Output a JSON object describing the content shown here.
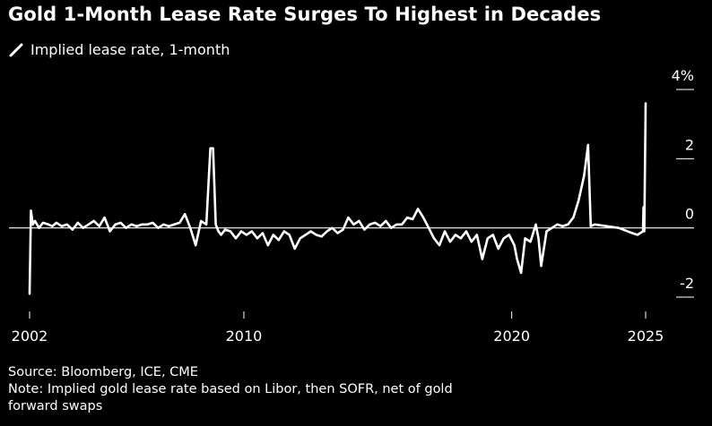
{
  "header": {
    "title": "Gold 1-Month Lease Rate Surges To Highest in Decades"
  },
  "colors": {
    "background": "#000000",
    "line": "#ffffff",
    "text": "#ffffff"
  },
  "chart_data": {
    "type": "line",
    "title": "Gold 1-Month Lease Rate Surges To Highest in Decades",
    "xlabel": "",
    "ylabel": "",
    "ylim": [
      -2,
      4
    ],
    "xlim": [
      2002,
      2027
    ],
    "y_ticks": [
      -2,
      0,
      2,
      4
    ],
    "y_tick_labels": [
      "-2",
      "0",
      "2",
      "4%"
    ],
    "x_ticks": [
      2002,
      2010,
      2020,
      2025
    ],
    "x_tick_labels": [
      "2002",
      "2010",
      "2020",
      "2025"
    ],
    "legend": "top-left",
    "series": [
      {
        "name": "Implied lease rate, 1-month",
        "x": [
          2002.0,
          2002.05,
          2002.12,
          2002.2,
          2002.35,
          2002.5,
          2002.7,
          2002.85,
          2003.0,
          2003.2,
          2003.4,
          2003.6,
          2003.8,
          2004.0,
          2004.2,
          2004.4,
          2004.6,
          2004.8,
          2005.0,
          2005.2,
          2005.4,
          2005.6,
          2005.8,
          2006.0,
          2006.2,
          2006.4,
          2006.6,
          2006.8,
          2007.0,
          2007.2,
          2007.4,
          2007.6,
          2007.8,
          2008.0,
          2008.2,
          2008.4,
          2008.6,
          2008.75,
          2008.85,
          2008.95,
          2009.05,
          2009.15,
          2009.3,
          2009.5,
          2009.7,
          2009.9,
          2010.1,
          2010.3,
          2010.5,
          2010.7,
          2010.9,
          2011.1,
          2011.3,
          2011.5,
          2011.7,
          2011.9,
          2012.1,
          2012.3,
          2012.5,
          2012.7,
          2012.9,
          2013.1,
          2013.3,
          2013.5,
          2013.7,
          2013.9,
          2014.1,
          2014.3,
          2014.5,
          2014.7,
          2014.9,
          2015.1,
          2015.3,
          2015.5,
          2015.7,
          2015.9,
          2016.1,
          2016.3,
          2016.5,
          2016.7,
          2016.9,
          2017.1,
          2017.3,
          2017.5,
          2017.7,
          2017.9,
          2018.1,
          2018.3,
          2018.5,
          2018.7,
          2018.9,
          2019.1,
          2019.3,
          2019.5,
          2019.7,
          2019.9,
          2020.1,
          2020.2,
          2020.35,
          2020.5,
          2020.7,
          2020.9,
          2021.0,
          2021.1,
          2021.3,
          2021.5,
          2021.7,
          2021.9,
          2022.1,
          2022.3,
          2022.5,
          2022.7,
          2022.85,
          2022.95,
          2023.1,
          2024.0,
          2024.5,
          2024.7,
          2024.9,
          2024.92,
          2024.95,
          2025.0
        ],
        "y": [
          -1.9,
          0.5,
          0.1,
          0.2,
          0.0,
          0.15,
          0.1,
          0.05,
          0.15,
          0.05,
          0.1,
          -0.05,
          0.15,
          0.0,
          0.1,
          0.2,
          0.05,
          0.3,
          -0.1,
          0.1,
          0.15,
          0.0,
          0.1,
          0.05,
          0.1,
          0.1,
          0.15,
          0.0,
          0.1,
          0.05,
          0.1,
          0.15,
          0.4,
          0.0,
          -0.5,
          0.2,
          0.1,
          2.3,
          2.3,
          0.1,
          -0.1,
          -0.2,
          -0.05,
          -0.1,
          -0.3,
          -0.1,
          -0.2,
          -0.1,
          -0.3,
          -0.15,
          -0.5,
          -0.2,
          -0.35,
          -0.1,
          -0.2,
          -0.6,
          -0.3,
          -0.2,
          -0.1,
          -0.2,
          -0.25,
          -0.1,
          0.0,
          -0.15,
          -0.05,
          0.3,
          0.1,
          0.2,
          -0.05,
          0.1,
          0.15,
          0.05,
          0.2,
          0.0,
          0.1,
          0.1,
          0.3,
          0.25,
          0.55,
          0.3,
          0.0,
          -0.3,
          -0.5,
          -0.1,
          -0.4,
          -0.2,
          -0.3,
          -0.1,
          -0.4,
          -0.2,
          -0.9,
          -0.3,
          -0.2,
          -0.6,
          -0.3,
          -0.2,
          -0.5,
          -0.9,
          -1.3,
          -0.3,
          -0.4,
          0.1,
          -0.3,
          -1.1,
          -0.1,
          0.0,
          0.1,
          0.05,
          0.1,
          0.3,
          0.8,
          1.5,
          2.4,
          0.05,
          0.1,
          0.0,
          -0.15,
          -0.2,
          -0.1,
          0.6,
          -0.1,
          3.6
        ]
      }
    ]
  },
  "legend": {
    "label": "Implied lease rate, 1-month"
  },
  "footer": {
    "source": "Source: Bloomberg, ICE, CME",
    "note": "Note: Implied gold lease rate based on Libor, then SOFR, net of gold",
    "note2": "forward swaps"
  }
}
